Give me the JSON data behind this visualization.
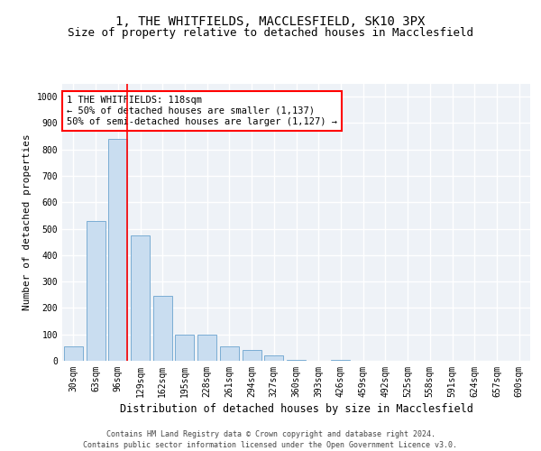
{
  "title_line1": "1, THE WHITFIELDS, MACCLESFIELD, SK10 3PX",
  "title_line2": "Size of property relative to detached houses in Macclesfield",
  "xlabel": "Distribution of detached houses by size in Macclesfield",
  "ylabel": "Number of detached properties",
  "bar_color": "#c9ddf0",
  "bar_edge_color": "#7aadd4",
  "vline_color": "red",
  "categories": [
    "30sqm",
    "63sqm",
    "96sqm",
    "129sqm",
    "162sqm",
    "195sqm",
    "228sqm",
    "261sqm",
    "294sqm",
    "327sqm",
    "360sqm",
    "393sqm",
    "426sqm",
    "459sqm",
    "492sqm",
    "525sqm",
    "558sqm",
    "591sqm",
    "624sqm",
    "657sqm",
    "690sqm"
  ],
  "values": [
    55,
    530,
    840,
    475,
    245,
    98,
    98,
    55,
    40,
    20,
    5,
    0,
    5,
    0,
    0,
    0,
    0,
    0,
    0,
    0,
    0
  ],
  "ylim": [
    0,
    1050
  ],
  "yticks": [
    0,
    100,
    200,
    300,
    400,
    500,
    600,
    700,
    800,
    900,
    1000
  ],
  "annotation_text": "1 THE WHITFIELDS: 118sqm\n← 50% of detached houses are smaller (1,137)\n50% of semi-detached houses are larger (1,127) →",
  "annotation_box_color": "white",
  "annotation_box_edge_color": "red",
  "background_color": "#eef2f7",
  "footer_line1": "Contains HM Land Registry data © Crown copyright and database right 2024.",
  "footer_line2": "Contains public sector information licensed under the Open Government Licence v3.0.",
  "grid_color": "white",
  "title_fontsize": 10,
  "subtitle_fontsize": 9,
  "tick_fontsize": 7,
  "ylabel_fontsize": 8,
  "xlabel_fontsize": 8.5,
  "footer_fontsize": 6,
  "annot_fontsize": 7.5
}
